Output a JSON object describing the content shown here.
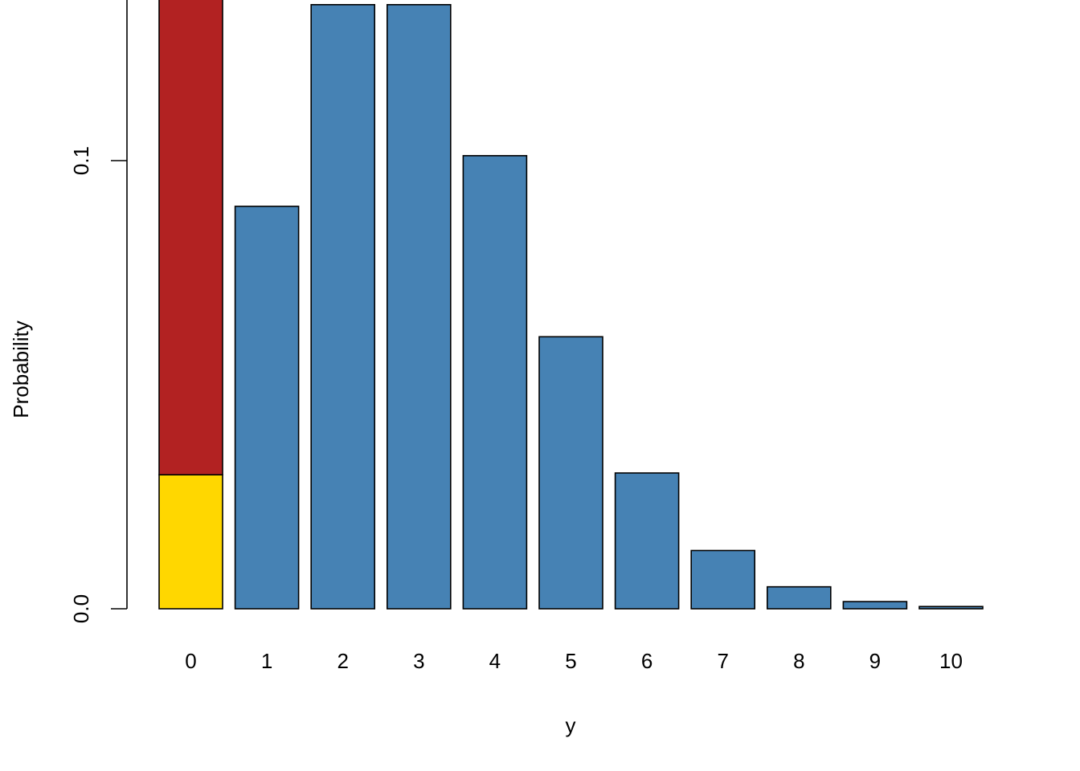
{
  "chart_data": {
    "type": "bar",
    "title": "",
    "xlabel": "y",
    "ylabel": "Probability",
    "categories": [
      "0",
      "1",
      "2",
      "3",
      "4",
      "5",
      "6",
      "7",
      "8",
      "9",
      "10"
    ],
    "ylim": [
      0,
      0.4
    ],
    "yticks": [
      "0.0",
      "0.1",
      "0.2",
      "0.3",
      "0.4"
    ],
    "grid": false,
    "legend": "none",
    "stacked": true,
    "series": [
      {
        "color": "#4682B4",
        "values": [
          0.0,
          0.0898,
          0.1348,
          0.1348,
          0.1011,
          0.0607,
          0.0303,
          0.013,
          0.0049,
          0.0016,
          0.0005
        ]
      },
      {
        "color": "#FFD700",
        "values": [
          0.0299,
          0,
          0,
          0,
          0,
          0,
          0,
          0,
          0,
          0,
          0
        ]
      },
      {
        "color": "#B22222",
        "values": [
          0.4,
          0,
          0,
          0,
          0,
          0,
          0,
          0,
          0,
          0,
          0
        ]
      }
    ]
  }
}
